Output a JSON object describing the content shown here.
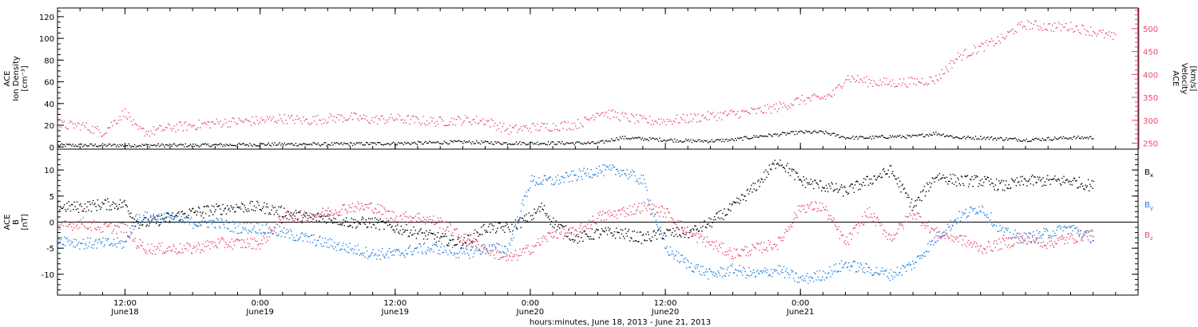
{
  "chart_data": [
    {
      "type": "scatter",
      "panel": "top",
      "ylabel_left": [
        "ACE",
        "Ion Density",
        "[cm⁻³]"
      ],
      "ylabel_right": [
        "ACE",
        "Velocity",
        "[km/s]"
      ],
      "ylim_left": [
        -2,
        128
      ],
      "yticks_left": [
        0,
        20,
        40,
        60,
        80,
        100,
        120
      ],
      "ylim_right": [
        237,
        545
      ],
      "yticks_right": [
        250,
        300,
        350,
        400,
        450,
        500
      ],
      "right_axis_color": "#e8476e",
      "xlim_hours": [
        -6,
        90
      ],
      "series": [
        {
          "color": "#000000",
          "axis": "left",
          "points": [
            [
              -6,
              2
            ],
            [
              -2,
              2
            ],
            [
              2,
              2
            ],
            [
              6,
              2
            ],
            [
              10,
              2.5
            ],
            [
              14,
              3
            ],
            [
              18,
              3
            ],
            [
              22,
              3.5
            ],
            [
              26,
              4
            ],
            [
              30,
              5
            ],
            [
              34,
              4
            ],
            [
              38,
              4
            ],
            [
              40,
              4
            ],
            [
              42,
              4
            ],
            [
              44,
              9
            ],
            [
              46,
              8
            ],
            [
              48,
              7
            ],
            [
              50,
              6
            ],
            [
              52,
              6
            ],
            [
              54,
              7
            ],
            [
              56,
              10
            ],
            [
              58,
              12
            ],
            [
              60,
              14
            ],
            [
              62,
              14
            ],
            [
              64,
              9
            ],
            [
              66,
              9
            ],
            [
              68,
              10
            ],
            [
              70,
              10
            ],
            [
              72,
              13
            ],
            [
              74,
              9
            ],
            [
              76,
              9
            ],
            [
              78,
              8
            ],
            [
              80,
              7
            ],
            [
              82,
              8
            ],
            [
              84,
              9
            ],
            [
              86,
              9
            ]
          ]
        },
        {
          "color": "#e8476e",
          "axis": "right",
          "points": [
            [
              -6,
              290
            ],
            [
              -4,
              290
            ],
            [
              -2,
              275
            ],
            [
              0,
              320
            ],
            [
              1,
              280
            ],
            [
              2,
              275
            ],
            [
              4,
              285
            ],
            [
              6,
              290
            ],
            [
              8,
              295
            ],
            [
              10,
              298
            ],
            [
              12,
              300
            ],
            [
              14,
              305
            ],
            [
              16,
              300
            ],
            [
              18,
              305
            ],
            [
              20,
              308
            ],
            [
              22,
              302
            ],
            [
              24,
              305
            ],
            [
              26,
              300
            ],
            [
              28,
              298
            ],
            [
              30,
              302
            ],
            [
              32,
              300
            ],
            [
              34,
              280
            ],
            [
              36,
              285
            ],
            [
              38,
              288
            ],
            [
              40,
              292
            ],
            [
              41,
              300
            ],
            [
              42,
              320
            ],
            [
              44,
              310
            ],
            [
              46,
              300
            ],
            [
              48,
              300
            ],
            [
              50,
              305
            ],
            [
              52,
              310
            ],
            [
              54,
              315
            ],
            [
              56,
              320
            ],
            [
              58,
              330
            ],
            [
              60,
              345
            ],
            [
              62,
              350
            ],
            [
              63,
              360
            ],
            [
              64,
              395
            ],
            [
              66,
              385
            ],
            [
              68,
              382
            ],
            [
              70,
              385
            ],
            [
              72,
              390
            ],
            [
              74,
              440
            ],
            [
              76,
              460
            ],
            [
              78,
              480
            ],
            [
              79,
              500
            ],
            [
              80,
              510
            ],
            [
              82,
              505
            ],
            [
              84,
              505
            ],
            [
              86,
              495
            ],
            [
              88,
              480
            ]
          ]
        }
      ]
    },
    {
      "type": "scatter",
      "panel": "bottom",
      "ylabel_left": [
        "ACE",
        "B",
        "[nT]"
      ],
      "ylim": [
        -14,
        14
      ],
      "yticks": [
        -10,
        -5,
        0,
        5,
        10
      ],
      "zero_line": true,
      "xlim_hours": [
        -6,
        90
      ],
      "x_ticks": [
        {
          "hour": 0,
          "label": "12:00",
          "sublabel": "June18"
        },
        {
          "hour": 12,
          "label": "0:00",
          "sublabel": "June19"
        },
        {
          "hour": 24,
          "label": "12:00",
          "sublabel": "June19"
        },
        {
          "hour": 36,
          "label": "0:00",
          "sublabel": "June20"
        },
        {
          "hour": 48,
          "label": "12:00",
          "sublabel": "June20"
        },
        {
          "hour": 60,
          "label": "0:00",
          "sublabel": "June21"
        }
      ],
      "xlabel": "hours:minutes, June 18, 2013 - June 21, 2013",
      "series": [
        {
          "name": "Bx",
          "color": "#000000",
          "points": [
            [
              -6,
              3
            ],
            [
              -4,
              3
            ],
            [
              -2,
              3.5
            ],
            [
              0,
              3.5
            ],
            [
              1,
              0
            ],
            [
              2,
              0
            ],
            [
              4,
              1
            ],
            [
              6,
              2
            ],
            [
              8,
              2.5
            ],
            [
              10,
              3
            ],
            [
              12,
              3
            ],
            [
              14,
              2
            ],
            [
              16,
              1
            ],
            [
              18,
              1
            ],
            [
              20,
              0
            ],
            [
              22,
              0
            ],
            [
              24,
              -1
            ],
            [
              26,
              -2
            ],
            [
              28,
              -3
            ],
            [
              30,
              -4
            ],
            [
              32,
              -1
            ],
            [
              34,
              -1
            ],
            [
              36,
              1
            ],
            [
              37,
              3
            ],
            [
              38,
              0
            ],
            [
              40,
              -3
            ],
            [
              42,
              -2
            ],
            [
              44,
              -2
            ],
            [
              46,
              -3
            ],
            [
              48,
              -2
            ],
            [
              50,
              -2
            ],
            [
              52,
              0
            ],
            [
              54,
              3
            ],
            [
              56,
              7
            ],
            [
              58,
              12
            ],
            [
              60,
              8
            ],
            [
              62,
              7
            ],
            [
              64,
              6
            ],
            [
              66,
              8
            ],
            [
              68,
              10
            ],
            [
              70,
              3
            ],
            [
              72,
              9
            ],
            [
              74,
              8
            ],
            [
              76,
              8
            ],
            [
              78,
              7
            ],
            [
              80,
              8
            ],
            [
              82,
              8
            ],
            [
              84,
              8
            ],
            [
              86,
              7
            ]
          ]
        },
        {
          "name": "By",
          "color": "#1a7ee0",
          "points": [
            [
              -6,
              -3
            ],
            [
              -4,
              -4
            ],
            [
              -2,
              -4
            ],
            [
              0,
              -4
            ],
            [
              1,
              1
            ],
            [
              2,
              1
            ],
            [
              4,
              1
            ],
            [
              6,
              0
            ],
            [
              8,
              0
            ],
            [
              10,
              -1
            ],
            [
              12,
              -1
            ],
            [
              14,
              -2
            ],
            [
              16,
              -3
            ],
            [
              18,
              -4
            ],
            [
              20,
              -5
            ],
            [
              22,
              -6
            ],
            [
              24,
              -6
            ],
            [
              26,
              -5
            ],
            [
              28,
              -5
            ],
            [
              30,
              -6
            ],
            [
              32,
              -5
            ],
            [
              34,
              -5
            ],
            [
              36,
              8
            ],
            [
              38,
              8
            ],
            [
              40,
              9
            ],
            [
              42,
              10
            ],
            [
              44,
              10
            ],
            [
              46,
              8
            ],
            [
              48,
              -5
            ],
            [
              50,
              -8
            ],
            [
              52,
              -10
            ],
            [
              54,
              -9
            ],
            [
              56,
              -10
            ],
            [
              58,
              -9
            ],
            [
              60,
              -11
            ],
            [
              62,
              -10
            ],
            [
              64,
              -8
            ],
            [
              66,
              -9
            ],
            [
              68,
              -10
            ],
            [
              70,
              -8
            ],
            [
              72,
              -3
            ],
            [
              74,
              1
            ],
            [
              76,
              3
            ],
            [
              78,
              -2
            ],
            [
              80,
              -3
            ],
            [
              82,
              -2
            ],
            [
              84,
              -1
            ],
            [
              86,
              -3
            ]
          ]
        },
        {
          "name": "Bz",
          "color": "#e8476e",
          "points": [
            [
              -6,
              -1
            ],
            [
              -4,
              0
            ],
            [
              -2,
              -1
            ],
            [
              0,
              -1
            ],
            [
              1,
              -4
            ],
            [
              2,
              -5
            ],
            [
              4,
              -5
            ],
            [
              6,
              -5
            ],
            [
              8,
              -4
            ],
            [
              10,
              -4
            ],
            [
              12,
              -4
            ],
            [
              14,
              1
            ],
            [
              16,
              1
            ],
            [
              18,
              2
            ],
            [
              20,
              3
            ],
            [
              22,
              3
            ],
            [
              24,
              1
            ],
            [
              26,
              1
            ],
            [
              28,
              0
            ],
            [
              30,
              -3
            ],
            [
              32,
              -5
            ],
            [
              34,
              -7
            ],
            [
              36,
              -5
            ],
            [
              38,
              -2
            ],
            [
              40,
              -2
            ],
            [
              42,
              1
            ],
            [
              44,
              2
            ],
            [
              46,
              3
            ],
            [
              48,
              2
            ],
            [
              50,
              -2
            ],
            [
              52,
              -4
            ],
            [
              54,
              -6
            ],
            [
              56,
              -5
            ],
            [
              58,
              -4
            ],
            [
              60,
              3
            ],
            [
              62,
              3
            ],
            [
              64,
              -4
            ],
            [
              66,
              2
            ],
            [
              68,
              -3
            ],
            [
              70,
              2
            ],
            [
              72,
              -2
            ],
            [
              74,
              -3
            ],
            [
              76,
              -5
            ],
            [
              78,
              -4
            ],
            [
              80,
              -3
            ],
            [
              82,
              -4
            ],
            [
              84,
              -3
            ],
            [
              86,
              -2
            ]
          ]
        }
      ]
    }
  ]
}
